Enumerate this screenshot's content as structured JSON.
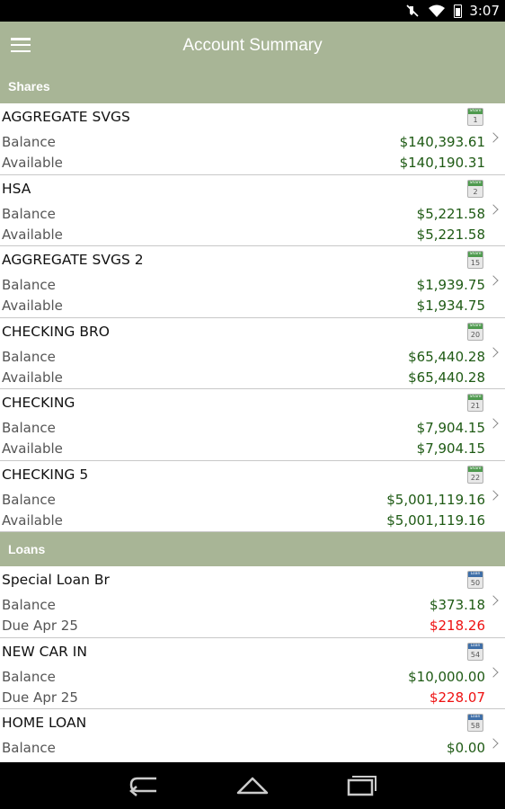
{
  "status_bar": {
    "time": "3:07",
    "icons": [
      "mute-icon",
      "wifi-icon",
      "battery-icon"
    ]
  },
  "app_bar": {
    "title": "Account Summary",
    "menu_icon": "hamburger-menu-icon"
  },
  "sections": [
    {
      "title": "Shares",
      "badge_label": "Share",
      "accounts": [
        {
          "name": "AGGREGATE SVGS",
          "badge": "1",
          "row1_label": "Balance",
          "row1_value": "$140,393.61",
          "row2_label": "Available",
          "row2_value": "$140,190.31"
        },
        {
          "name": "HSA",
          "badge": "2",
          "row1_label": "Balance",
          "row1_value": "$5,221.58",
          "row2_label": "Available",
          "row2_value": "$5,221.58"
        },
        {
          "name": "AGGREGATE SVGS 2",
          "badge": "15",
          "row1_label": "Balance",
          "row1_value": "$1,939.75",
          "row2_label": "Available",
          "row2_value": "$1,934.75"
        },
        {
          "name": "CHECKING BRO",
          "badge": "20",
          "row1_label": "Balance",
          "row1_value": "$65,440.28",
          "row2_label": "Available",
          "row2_value": "$65,440.28"
        },
        {
          "name": "CHECKING",
          "badge": "21",
          "row1_label": "Balance",
          "row1_value": "$7,904.15",
          "row2_label": "Available",
          "row2_value": "$7,904.15"
        },
        {
          "name": "CHECKING 5",
          "badge": "22",
          "row1_label": "Balance",
          "row1_value": "$5,001,119.16",
          "row2_label": "Available",
          "row2_value": "$5,001,119.16"
        }
      ]
    },
    {
      "title": "Loans",
      "badge_label": "Loan",
      "accounts": [
        {
          "name": "Special Loan Br",
          "badge": "50",
          "row1_label": "Balance",
          "row1_value": "$373.18",
          "row2_label": "Due Apr 25",
          "row2_value": "$218.26"
        },
        {
          "name": "NEW CAR IN",
          "badge": "54",
          "row1_label": "Balance",
          "row1_value": "$10,000.00",
          "row2_label": "Due Apr 25",
          "row2_value": "$228.07"
        },
        {
          "name": "HOME LOAN",
          "badge": "58",
          "row1_label": "Balance",
          "row1_value": "$0.00",
          "row2_label": "",
          "row2_value": ""
        }
      ]
    }
  ],
  "nav_bar": {
    "buttons": [
      "back-icon",
      "home-icon",
      "recent-apps-icon"
    ]
  },
  "colors": {
    "header_bg": "#a8b596",
    "amount_green": "#1e5a14",
    "due_red": "#ee1111"
  }
}
